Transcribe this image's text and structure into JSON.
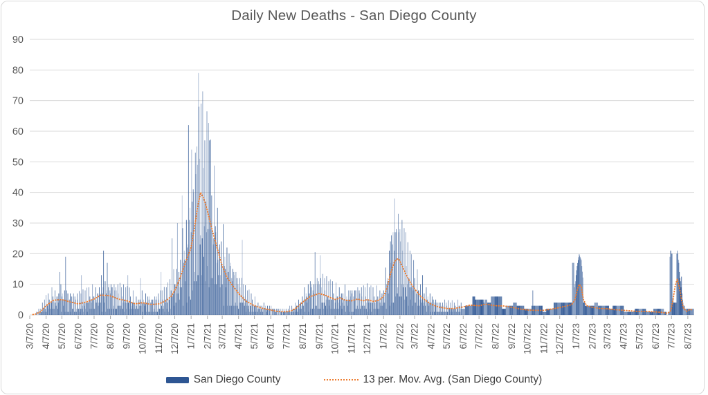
{
  "window": {
    "background": "#FFFFFF",
    "border_color": "#D8D8D8"
  },
  "legend": {
    "position": "bottom-center"
  },
  "chart_data": {
    "type": "bar",
    "title": "Daily New Deaths - San Diego County",
    "xlabel": "",
    "ylabel": "",
    "grid": "horizontal",
    "grid_color": "#D9D9D9",
    "axis_text_color": "#595959",
    "tick_color": "#A6A6A6",
    "series": [
      {
        "name": "San Diego County",
        "type": "bar",
        "color": "#2E5693"
      },
      {
        "name": "13 per. Mov. Avg. (San Diego County)",
        "type": "line",
        "style": "dotted",
        "color": "#ED7D31"
      }
    ],
    "y_axis": {
      "min": 0,
      "max": 90,
      "tick_step": 10,
      "ticks": [
        "0",
        "10",
        "20",
        "30",
        "40",
        "50",
        "60",
        "70",
        "80",
        "90"
      ]
    },
    "x_axis": {
      "labels": [
        {
          "label": "3/7/20",
          "day": 0
        },
        {
          "label": "4/7/20",
          "day": 31
        },
        {
          "label": "5/7/20",
          "day": 61
        },
        {
          "label": "6/7/20",
          "day": 92
        },
        {
          "label": "7/7/20",
          "day": 122
        },
        {
          "label": "8/7/20",
          "day": 153
        },
        {
          "label": "9/7/20",
          "day": 184
        },
        {
          "label": "10/7/20",
          "day": 214
        },
        {
          "label": "11/7/20",
          "day": 245
        },
        {
          "label": "12/7/20",
          "day": 275
        },
        {
          "label": "1/7/21",
          "day": 306
        },
        {
          "label": "2/7/21",
          "day": 337
        },
        {
          "label": "3/7/21",
          "day": 365
        },
        {
          "label": "4/7/21",
          "day": 396
        },
        {
          "label": "5/7/21",
          "day": 426
        },
        {
          "label": "6/7/21",
          "day": 457
        },
        {
          "label": "7/7/21",
          "day": 487
        },
        {
          "label": "8/7/21",
          "day": 518
        },
        {
          "label": "9/7/21",
          "day": 549
        },
        {
          "label": "10/7/21",
          "day": 579
        },
        {
          "label": "11/7/21",
          "day": 610
        },
        {
          "label": "12/7/21",
          "day": 640
        },
        {
          "label": "1/7/22",
          "day": 671
        },
        {
          "label": "2/7/22",
          "day": 702
        },
        {
          "label": "3/7/22",
          "day": 730
        },
        {
          "label": "4/7/22",
          "day": 761
        },
        {
          "label": "5/7/22",
          "day": 791
        },
        {
          "label": "6/7/22",
          "day": 822
        },
        {
          "label": "7/7/22",
          "day": 852
        },
        {
          "label": "8/7/22",
          "day": 883
        },
        {
          "label": "9/7/22",
          "day": 914
        },
        {
          "label": "10/7/22",
          "day": 944
        },
        {
          "label": "11/7/22",
          "day": 975
        },
        {
          "label": "12/7/22",
          "day": 1005
        },
        {
          "label": "1/7/23",
          "day": 1036
        },
        {
          "label": "2/7/23",
          "day": 1067
        },
        {
          "label": "3/7/23",
          "day": 1095
        },
        {
          "label": "4/7/23",
          "day": 1126
        },
        {
          "label": "5/7/23",
          "day": 1156
        },
        {
          "label": "6/7/23",
          "day": 1187
        },
        {
          "label": "7/7/23",
          "day": 1217
        },
        {
          "label": "8/7/23",
          "day": 1248
        }
      ]
    },
    "days_total": 1260,
    "weekly_block_start_day": 820,
    "moving_avg_points": [
      [
        0,
        0
      ],
      [
        10,
        0.2
      ],
      [
        20,
        1
      ],
      [
        31,
        3
      ],
      [
        45,
        4.8
      ],
      [
        61,
        5
      ],
      [
        75,
        4.3
      ],
      [
        92,
        3.6
      ],
      [
        107,
        4.2
      ],
      [
        122,
        5.2
      ],
      [
        135,
        6.5
      ],
      [
        153,
        6.2
      ],
      [
        168,
        5.2
      ],
      [
        184,
        4.6
      ],
      [
        200,
        3.6
      ],
      [
        214,
        4
      ],
      [
        230,
        3.4
      ],
      [
        245,
        3.6
      ],
      [
        258,
        4.6
      ],
      [
        268,
        6
      ],
      [
        275,
        8
      ],
      [
        285,
        12
      ],
      [
        295,
        17
      ],
      [
        306,
        22
      ],
      [
        312,
        28
      ],
      [
        318,
        35
      ],
      [
        324,
        40
      ],
      [
        330,
        38
      ],
      [
        337,
        34
      ],
      [
        344,
        29
      ],
      [
        352,
        24
      ],
      [
        360,
        19
      ],
      [
        365,
        16
      ],
      [
        375,
        12
      ],
      [
        385,
        9.5
      ],
      [
        396,
        7
      ],
      [
        410,
        4.5
      ],
      [
        426,
        3
      ],
      [
        440,
        2.2
      ],
      [
        457,
        1.6
      ],
      [
        470,
        1.1
      ],
      [
        487,
        1
      ],
      [
        497,
        1.4
      ],
      [
        505,
        2.2
      ],
      [
        518,
        4.2
      ],
      [
        532,
        6
      ],
      [
        549,
        7
      ],
      [
        562,
        6.3
      ],
      [
        579,
        5
      ],
      [
        588,
        5.6
      ],
      [
        598,
        4.8
      ],
      [
        610,
        4.6
      ],
      [
        622,
        5.2
      ],
      [
        632,
        4.6
      ],
      [
        640,
        5
      ],
      [
        652,
        4.4
      ],
      [
        662,
        4.8
      ],
      [
        671,
        6
      ],
      [
        678,
        9
      ],
      [
        685,
        14
      ],
      [
        692,
        17.5
      ],
      [
        699,
        18.5
      ],
      [
        706,
        16
      ],
      [
        714,
        13
      ],
      [
        722,
        10.5
      ],
      [
        730,
        8.5
      ],
      [
        740,
        6.3
      ],
      [
        750,
        4.8
      ],
      [
        761,
        3.5
      ],
      [
        775,
        2.6
      ],
      [
        791,
        2.1
      ],
      [
        805,
        2.1
      ],
      [
        822,
        2.6
      ],
      [
        835,
        3.2
      ],
      [
        852,
        3
      ],
      [
        865,
        3.5
      ],
      [
        875,
        3.2
      ],
      [
        883,
        3
      ],
      [
        900,
        2.9
      ],
      [
        914,
        2.5
      ],
      [
        930,
        1.9
      ],
      [
        944,
        1.6
      ],
      [
        958,
        1.5
      ],
      [
        975,
        1.5
      ],
      [
        990,
        1.9
      ],
      [
        1005,
        2.4
      ],
      [
        1018,
        2.9
      ],
      [
        1028,
        3.4
      ],
      [
        1034,
        5
      ],
      [
        1038,
        8
      ],
      [
        1042,
        10
      ],
      [
        1046,
        9
      ],
      [
        1050,
        5
      ],
      [
        1056,
        3
      ],
      [
        1067,
        2.5
      ],
      [
        1080,
        2.1
      ],
      [
        1095,
        2
      ],
      [
        1110,
        1.7
      ],
      [
        1126,
        1.5
      ],
      [
        1140,
        1.3
      ],
      [
        1156,
        1.1
      ],
      [
        1170,
        1.1
      ],
      [
        1187,
        1
      ],
      [
        1200,
        0.8
      ],
      [
        1210,
        0.5
      ],
      [
        1216,
        1.5
      ],
      [
        1220,
        5
      ],
      [
        1224,
        9.5
      ],
      [
        1228,
        11.7
      ],
      [
        1232,
        9
      ],
      [
        1236,
        5
      ],
      [
        1240,
        2
      ],
      [
        1246,
        1.2
      ],
      [
        1252,
        1.8
      ],
      [
        1259,
        1.5
      ]
    ],
    "daily_pattern_7": [
      1.55,
      0.5,
      1.2,
      1.75,
      0.35,
      0.9,
      1.4
    ],
    "daily_pattern_11": [
      1.0,
      0.65,
      1.3,
      0.85,
      1.15,
      0.55,
      1.25,
      0.95,
      0.7,
      1.35,
      0.8
    ],
    "peak_bars": {
      "57": 14,
      "68": 19,
      "98": 13,
      "140": 21,
      "147": 17,
      "186": 13,
      "210": 12,
      "249": 14,
      "270": 25,
      "280": 30,
      "289": 39,
      "301": 62,
      "307": 54,
      "314": 53,
      "320": 79,
      "325": 69,
      "332": 57,
      "341": 57,
      "403": 24.5,
      "541": 20.5,
      "551": 19.5,
      "684": 24,
      "692": 38,
      "699": 33,
      "706": 31,
      "713": 27,
      "745": 13,
      "954": 8,
      "1029": 17,
      "1030": 17,
      "1031": 17,
      "1032": 17,
      "1214": 19,
      "1215": 21,
      "1216": 21,
      "1217": 20,
      "1218": 20,
      "1221": 4,
      "1222": 4,
      "1223": 4,
      "1224": 4,
      "1225": 4,
      "1226": 4,
      "1236": 12.5
    }
  }
}
